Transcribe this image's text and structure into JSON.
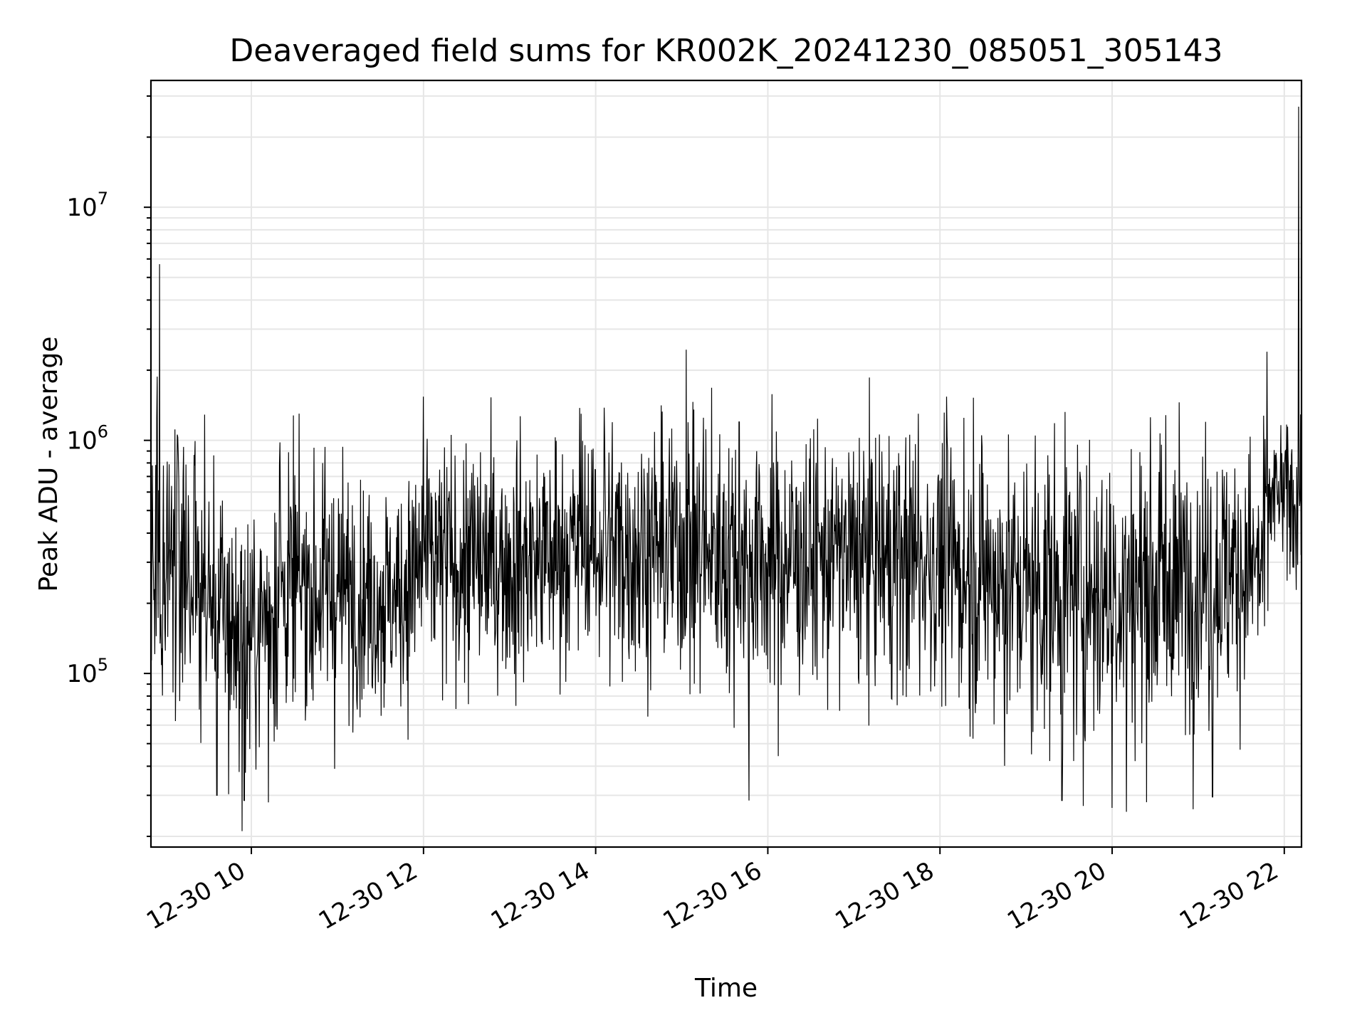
{
  "chart_data": {
    "type": "line",
    "title": "Deaveraged field sums for KR002K_20241230_085051_305143",
    "xlabel": "Time",
    "ylabel": "Peak ADU - average",
    "x_start": "2024-12-30 08:50",
    "x_end": "2024-12-30 22:12",
    "xlim": [
      "2024-12-30 08:50",
      "2024-12-30 22:12"
    ],
    "ylim": [
      18000,
      35000000
    ],
    "y_scale": "log",
    "grid": true,
    "line_color": "#000000",
    "grid_color": "#e6e6e6",
    "x_ticks": [
      {
        "time": "2024-12-30 10:00",
        "label": "12-30 10"
      },
      {
        "time": "2024-12-30 12:00",
        "label": "12-30 12"
      },
      {
        "time": "2024-12-30 14:00",
        "label": "12-30 14"
      },
      {
        "time": "2024-12-30 16:00",
        "label": "12-30 16"
      },
      {
        "time": "2024-12-30 18:00",
        "label": "12-30 18"
      },
      {
        "time": "2024-12-30 20:00",
        "label": "12-30 20"
      },
      {
        "time": "2024-12-30 22:00",
        "label": "12-30 22"
      }
    ],
    "y_ticks": [
      {
        "value": 100000,
        "base": "10",
        "exp": "5"
      },
      {
        "value": 1000000,
        "base": "10",
        "exp": "6"
      },
      {
        "value": 10000000,
        "base": "10",
        "exp": "7"
      }
    ],
    "envelope": [
      {
        "t": "2024-12-30 08:50",
        "median": 300000,
        "spread": 0.32
      },
      {
        "t": "2024-12-30 09:10",
        "median": 330000,
        "spread": 0.32
      },
      {
        "t": "2024-12-30 09:40",
        "median": 170000,
        "spread": 0.3
      },
      {
        "t": "2024-12-30 10:00",
        "median": 140000,
        "spread": 0.3
      },
      {
        "t": "2024-12-30 10:20",
        "median": 230000,
        "spread": 0.28
      },
      {
        "t": "2024-12-30 11:00",
        "median": 230000,
        "spread": 0.26
      },
      {
        "t": "2024-12-30 11:40",
        "median": 210000,
        "spread": 0.24
      },
      {
        "t": "2024-12-30 12:00",
        "median": 290000,
        "spread": 0.27
      },
      {
        "t": "2024-12-30 13:00",
        "median": 300000,
        "spread": 0.26
      },
      {
        "t": "2024-12-30 14:00",
        "median": 350000,
        "spread": 0.26
      },
      {
        "t": "2024-12-30 15:00",
        "median": 350000,
        "spread": 0.28
      },
      {
        "t": "2024-12-30 16:00",
        "median": 300000,
        "spread": 0.28
      },
      {
        "t": "2024-12-30 17:00",
        "median": 320000,
        "spread": 0.27
      },
      {
        "t": "2024-12-30 18:00",
        "median": 300000,
        "spread": 0.29
      },
      {
        "t": "2024-12-30 19:00",
        "median": 230000,
        "spread": 0.32
      },
      {
        "t": "2024-12-30 20:00",
        "median": 230000,
        "spread": 0.33
      },
      {
        "t": "2024-12-30 21:00",
        "median": 260000,
        "spread": 0.31
      },
      {
        "t": "2024-12-30 21:45",
        "median": 290000,
        "spread": 0.27
      },
      {
        "t": "2024-12-30 21:50",
        "median": 560000,
        "spread": 0.16
      },
      {
        "t": "2024-12-30 22:12",
        "median": 560000,
        "spread": 0.18
      }
    ],
    "spikes": [
      {
        "t": "2024-12-30 08:56",
        "value": 5700000
      },
      {
        "t": "2024-12-30 08:54",
        "value": 1250000
      },
      {
        "t": "2024-12-30 10:20",
        "value": 980000
      },
      {
        "t": "2024-12-30 12:00",
        "value": 1540000
      },
      {
        "t": "2024-12-30 13:50",
        "value": 1300000
      },
      {
        "t": "2024-12-30 14:06",
        "value": 1380000
      },
      {
        "t": "2024-12-30 15:03",
        "value": 2450000
      },
      {
        "t": "2024-12-30 15:15",
        "value": 1250000
      },
      {
        "t": "2024-12-30 15:40",
        "value": 1200000
      },
      {
        "t": "2024-12-30 17:45",
        "value": 1300000
      },
      {
        "t": "2024-12-30 21:48",
        "value": 2400000
      },
      {
        "t": "2024-12-30 22:10",
        "value": 27000000
      },
      {
        "t": "2024-12-30 09:36",
        "value": 30000
      },
      {
        "t": "2024-12-30 09:55",
        "value": 28500
      },
      {
        "t": "2024-12-30 10:12",
        "value": 28000
      },
      {
        "t": "2024-12-30 15:47",
        "value": 28500
      },
      {
        "t": "2024-12-30 19:25",
        "value": 28500
      },
      {
        "t": "2024-12-30 19:40",
        "value": 27000
      },
      {
        "t": "2024-12-30 20:00",
        "value": 26500
      },
      {
        "t": "2024-12-30 20:10",
        "value": 25500
      },
      {
        "t": "2024-12-30 21:10",
        "value": 29500
      }
    ]
  }
}
